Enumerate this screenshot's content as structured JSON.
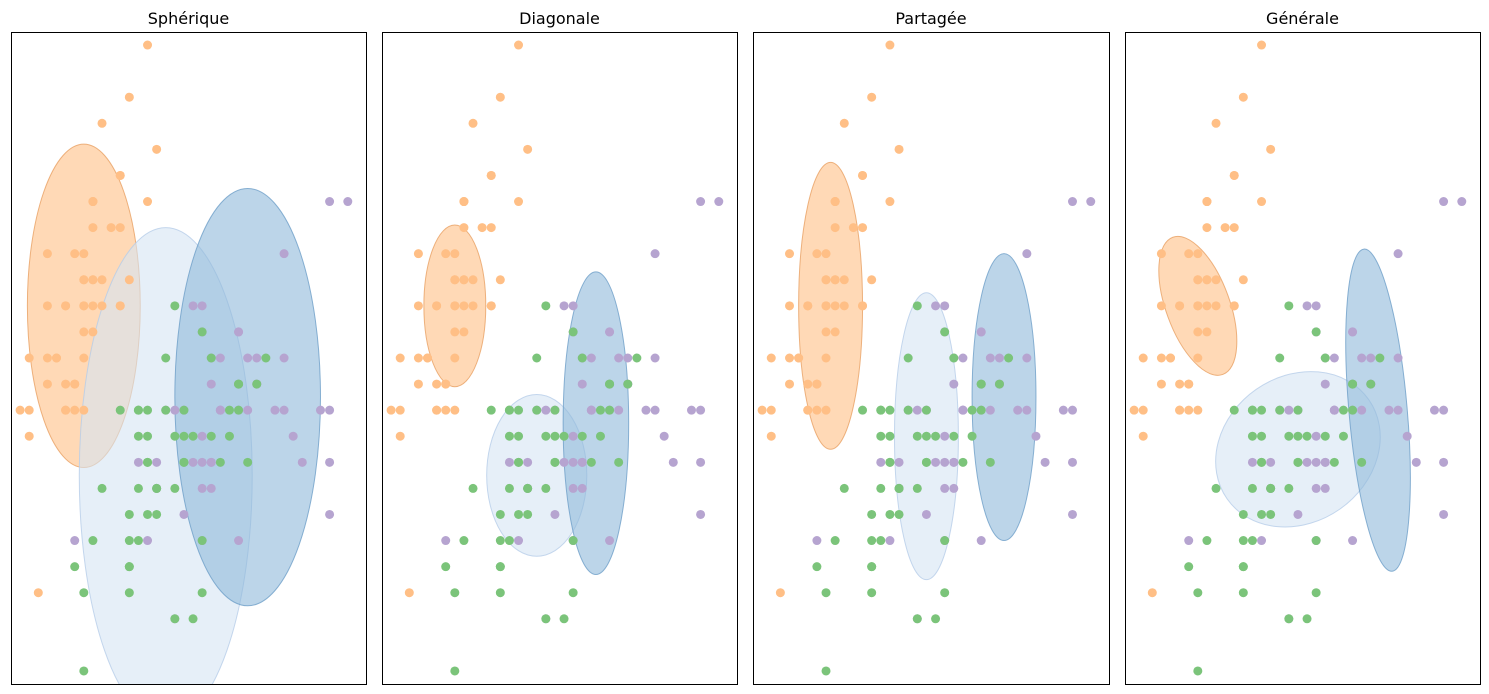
{
  "chart_data": [
    {
      "type": "scatter",
      "title": "Sphérique",
      "ellipses": [
        {
          "cluster": 0,
          "cx": 5.0,
          "cy": 3.4,
          "rx": 0.62,
          "ry": 0.62,
          "angle": 0
        },
        {
          "cluster": 1,
          "cx": 5.9,
          "cy": 2.75,
          "rx": 0.95,
          "ry": 0.95,
          "angle": 0
        },
        {
          "cluster": 2,
          "cx": 6.8,
          "cy": 3.05,
          "rx": 0.8,
          "ry": 0.8,
          "angle": 0
        }
      ]
    },
    {
      "type": "scatter",
      "title": "Diagonale",
      "ellipses": [
        {
          "cluster": 0,
          "cx": 5.0,
          "cy": 3.4,
          "rx": 0.34,
          "ry": 0.31,
          "angle": 0
        },
        {
          "cluster": 1,
          "cx": 5.9,
          "cy": 2.75,
          "rx": 0.55,
          "ry": 0.31,
          "angle": 0
        },
        {
          "cluster": 2,
          "cx": 6.55,
          "cy": 2.95,
          "rx": 0.36,
          "ry": 0.58,
          "angle": 0
        }
      ]
    },
    {
      "type": "scatter",
      "title": "Partagée",
      "ellipses": [
        {
          "cluster": 0,
          "cx": 5.05,
          "cy": 3.4,
          "rx": 0.35,
          "ry": 0.55,
          "angle": 0
        },
        {
          "cluster": 1,
          "cx": 6.1,
          "cy": 2.9,
          "rx": 0.35,
          "ry": 0.55,
          "angle": 0
        },
        {
          "cluster": 2,
          "cx": 6.95,
          "cy": 3.05,
          "rx": 0.35,
          "ry": 0.55,
          "angle": 0
        }
      ]
    },
    {
      "type": "scatter",
      "title": "Générale",
      "ellipses": [
        {
          "cluster": 0,
          "cx": 5.0,
          "cy": 3.4,
          "rx": 0.35,
          "ry": 0.28,
          "angle": -20
        },
        {
          "cluster": 1,
          "cx": 6.1,
          "cy": 2.85,
          "rx": 0.95,
          "ry": 0.28,
          "angle": -35
        },
        {
          "cluster": 2,
          "cx": 6.98,
          "cy": 3.0,
          "rx": 0.32,
          "ry": 0.62,
          "angle": -5
        }
      ]
    }
  ],
  "shared_points": {
    "xlim": [
      4.2,
      8.1
    ],
    "ylim": [
      1.95,
      4.45
    ],
    "ylim_inverted": true,
    "clusters": [
      {
        "color": "#ffbf86",
        "points": [
          [
            5.1,
            3.5
          ],
          [
            4.9,
            3.0
          ],
          [
            4.7,
            3.2
          ],
          [
            4.6,
            3.1
          ],
          [
            5.0,
            3.6
          ],
          [
            5.4,
            3.9
          ],
          [
            4.6,
            3.4
          ],
          [
            5.0,
            3.4
          ],
          [
            4.4,
            2.9
          ],
          [
            4.9,
            3.1
          ],
          [
            5.4,
            3.7
          ],
          [
            4.8,
            3.4
          ],
          [
            4.8,
            3.0
          ],
          [
            4.3,
            3.0
          ],
          [
            5.8,
            4.0
          ],
          [
            5.7,
            4.4
          ],
          [
            5.4,
            3.9
          ],
          [
            5.1,
            3.5
          ],
          [
            5.7,
            3.8
          ],
          [
            5.1,
            3.8
          ],
          [
            5.4,
            3.4
          ],
          [
            5.1,
            3.7
          ],
          [
            4.6,
            3.6
          ],
          [
            5.1,
            3.3
          ],
          [
            4.8,
            3.4
          ],
          [
            5.0,
            3.0
          ],
          [
            5.0,
            3.4
          ],
          [
            5.2,
            3.5
          ],
          [
            5.2,
            3.4
          ],
          [
            4.7,
            3.2
          ],
          [
            4.8,
            3.1
          ],
          [
            5.4,
            3.4
          ],
          [
            5.2,
            4.1
          ],
          [
            5.5,
            4.2
          ],
          [
            4.9,
            3.1
          ],
          [
            5.0,
            3.2
          ],
          [
            5.5,
            3.5
          ],
          [
            4.9,
            3.6
          ],
          [
            4.4,
            3.0
          ],
          [
            5.1,
            3.4
          ],
          [
            5.0,
            3.5
          ],
          [
            4.5,
            2.3
          ],
          [
            4.4,
            3.2
          ],
          [
            5.0,
            3.5
          ],
          [
            5.1,
            3.8
          ],
          [
            4.8,
            3.0
          ],
          [
            5.1,
            3.8
          ],
          [
            4.6,
            3.2
          ],
          [
            5.3,
            3.7
          ],
          [
            5.0,
            3.3
          ]
        ]
      },
      {
        "color": "#b6a4d0",
        "points": [
          [
            6.3,
            3.3
          ],
          [
            5.8,
            2.7
          ],
          [
            7.1,
            3.0
          ],
          [
            6.3,
            2.9
          ],
          [
            6.5,
            3.0
          ],
          [
            7.6,
            3.0
          ],
          [
            4.9,
            2.5
          ],
          [
            7.3,
            2.9
          ],
          [
            6.7,
            2.5
          ],
          [
            7.2,
            3.6
          ],
          [
            6.5,
            3.2
          ],
          [
            6.4,
            2.7
          ],
          [
            6.8,
            3.0
          ],
          [
            5.7,
            2.5
          ],
          [
            5.8,
            2.8
          ],
          [
            6.4,
            3.2
          ],
          [
            6.5,
            3.0
          ],
          [
            7.7,
            3.8
          ],
          [
            7.7,
            2.6
          ],
          [
            6.0,
            2.2
          ],
          [
            6.9,
            3.2
          ],
          [
            5.6,
            2.8
          ],
          [
            7.7,
            2.8
          ],
          [
            6.3,
            2.7
          ],
          [
            6.7,
            3.3
          ],
          [
            7.2,
            3.2
          ],
          [
            6.2,
            2.8
          ],
          [
            6.1,
            3.0
          ],
          [
            6.4,
            2.8
          ],
          [
            7.2,
            3.0
          ],
          [
            7.4,
            2.8
          ],
          [
            7.9,
            3.8
          ],
          [
            6.4,
            2.8
          ],
          [
            6.3,
            2.8
          ],
          [
            6.1,
            2.6
          ],
          [
            7.7,
            3.0
          ],
          [
            6.3,
            3.4
          ],
          [
            6.4,
            3.1
          ],
          [
            6.0,
            3.0
          ],
          [
            6.9,
            3.1
          ],
          [
            6.7,
            3.1
          ],
          [
            6.9,
            3.1
          ],
          [
            5.8,
            2.7
          ],
          [
            6.8,
            3.2
          ],
          [
            6.7,
            3.3
          ],
          [
            6.7,
            3.0
          ],
          [
            6.3,
            2.5
          ],
          [
            6.5,
            3.0
          ],
          [
            6.2,
            3.4
          ],
          [
            5.9,
            3.0
          ]
        ]
      },
      {
        "color": "#7bc47a",
        "points": [
          [
            7.0,
            3.2
          ],
          [
            6.4,
            3.2
          ],
          [
            6.9,
            3.1
          ],
          [
            5.5,
            2.3
          ],
          [
            6.5,
            2.8
          ],
          [
            5.7,
            2.8
          ],
          [
            6.3,
            3.3
          ],
          [
            4.9,
            2.4
          ],
          [
            6.6,
            2.9
          ],
          [
            5.2,
            2.7
          ],
          [
            5.0,
            2.0
          ],
          [
            5.9,
            3.0
          ],
          [
            6.0,
            2.2
          ],
          [
            6.1,
            2.9
          ],
          [
            5.6,
            2.9
          ],
          [
            6.7,
            3.1
          ],
          [
            5.6,
            3.0
          ],
          [
            5.8,
            2.7
          ],
          [
            6.2,
            2.2
          ],
          [
            5.6,
            2.5
          ],
          [
            5.9,
            3.2
          ],
          [
            6.1,
            2.8
          ],
          [
            6.3,
            2.5
          ],
          [
            6.1,
            2.8
          ],
          [
            6.4,
            2.9
          ],
          [
            6.6,
            3.0
          ],
          [
            6.8,
            2.8
          ],
          [
            6.7,
            3.0
          ],
          [
            6.0,
            2.9
          ],
          [
            5.7,
            2.6
          ],
          [
            5.5,
            2.4
          ],
          [
            5.5,
            2.4
          ],
          [
            5.8,
            2.7
          ],
          [
            6.0,
            2.7
          ],
          [
            5.4,
            3.0
          ],
          [
            6.0,
            3.4
          ],
          [
            6.7,
            3.1
          ],
          [
            6.3,
            2.3
          ],
          [
            5.6,
            3.0
          ],
          [
            5.5,
            2.5
          ],
          [
            5.5,
            2.6
          ],
          [
            6.1,
            3.0
          ],
          [
            5.8,
            2.6
          ],
          [
            5.0,
            2.3
          ],
          [
            5.6,
            2.7
          ],
          [
            5.7,
            3.0
          ],
          [
            5.7,
            2.9
          ],
          [
            6.2,
            2.9
          ],
          [
            5.1,
            2.5
          ],
          [
            5.7,
            2.8
          ]
        ]
      }
    ]
  }
}
